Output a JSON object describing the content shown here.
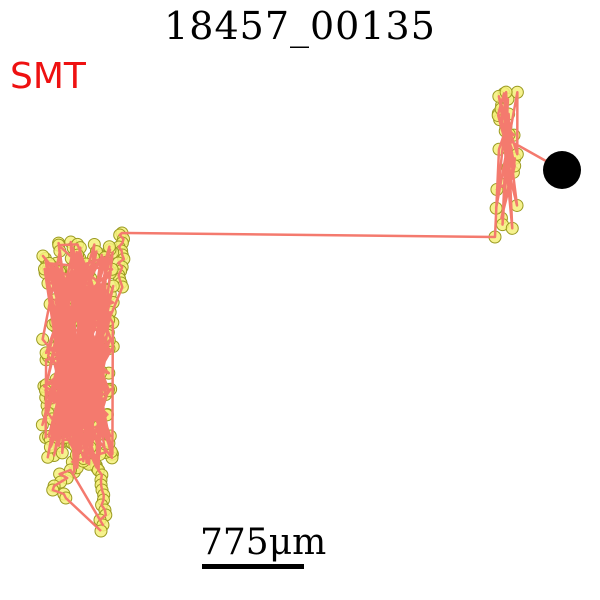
{
  "title": "18457_00135",
  "tag": {
    "text": "SMT",
    "color": "#ee1111"
  },
  "scale": {
    "label": "775μm"
  },
  "colors": {
    "track": "#f47a6e",
    "marker_fill": "#f5f07a",
    "marker_stroke": "#9a9a20",
    "end_point": "#000000"
  }
}
